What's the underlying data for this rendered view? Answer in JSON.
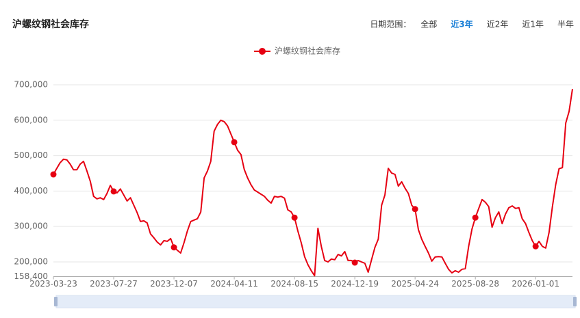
{
  "chart_data": {
    "type": "line",
    "title": "沪螺纹钢社会库存",
    "categories": [
      "2023-03-23",
      null,
      null,
      null,
      null,
      null,
      null,
      null,
      null,
      null,
      null,
      null,
      null,
      null,
      null,
      null,
      null,
      null,
      "2023-07-27",
      null,
      null,
      null,
      null,
      null,
      null,
      null,
      null,
      null,
      null,
      null,
      null,
      null,
      null,
      null,
      null,
      null,
      "2023-12-07",
      null,
      null,
      null,
      null,
      null,
      null,
      null,
      null,
      null,
      null,
      null,
      null,
      null,
      null,
      null,
      null,
      null,
      "2024-04-11",
      null,
      null,
      null,
      null,
      null,
      null,
      null,
      null,
      null,
      null,
      null,
      null,
      null,
      null,
      null,
      null,
      null,
      "2024-08-15",
      null,
      null,
      null,
      null,
      null,
      null,
      null,
      null,
      null,
      null,
      null,
      null,
      null,
      null,
      null,
      null,
      null,
      "2024-12-19",
      null,
      null,
      null,
      null,
      null,
      null,
      null,
      null,
      null,
      null,
      null,
      null,
      null,
      null,
      null,
      null,
      null,
      "2025-04-24",
      null,
      null,
      null,
      null,
      null,
      null,
      null,
      null,
      null,
      null,
      null,
      null,
      null,
      null,
      null,
      null,
      null,
      "2025-08-28",
      null,
      null,
      null,
      null,
      null,
      null,
      null,
      null,
      null,
      null,
      null,
      null,
      null,
      null,
      null,
      null,
      null,
      "2026-01-01",
      null,
      null,
      null,
      null,
      null,
      null,
      null,
      null,
      null,
      null,
      null
    ],
    "series": [
      {
        "name": "沪螺纹钢社会库存",
        "color": "#e60012",
        "values": [
          447000,
          464000,
          480000,
          490000,
          488000,
          476000,
          460000,
          460000,
          476000,
          484000,
          457000,
          428000,
          385000,
          378000,
          381000,
          376000,
          393000,
          416000,
          399000,
          395000,
          406000,
          389000,
          372000,
          381000,
          360000,
          339000,
          314000,
          316000,
          310000,
          279000,
          268000,
          256000,
          248000,
          260000,
          258000,
          266000,
          241000,
          233000,
          225000,
          254000,
          287000,
          314000,
          318000,
          322000,
          341000,
          437000,
          457000,
          484000,
          569000,
          588000,
          600000,
          596000,
          584000,
          561000,
          538000,
          515000,
          503000,
          461000,
          437000,
          418000,
          403000,
          397000,
          391000,
          385000,
          374000,
          366000,
          385000,
          383000,
          385000,
          380000,
          347000,
          341000,
          325000,
          287000,
          254000,
          215000,
          192000,
          175000,
          161000,
          295000,
          244000,
          204000,
          200000,
          208000,
          206000,
          221000,
          217000,
          229000,
          204000,
          204000,
          198000,
          204000,
          200000,
          196000,
          171000,
          206000,
          241000,
          264000,
          360000,
          389000,
          464000,
          451000,
          447000,
          414000,
          426000,
          408000,
          393000,
          360000,
          349000,
          291000,
          264000,
          244000,
          225000,
          202000,
          214000,
          215000,
          214000,
          196000,
          179000,
          169000,
          175000,
          171000,
          179000,
          181000,
          244000,
          293000,
          325000,
          351000,
          376000,
          368000,
          356000,
          298000,
          325000,
          341000,
          308000,
          335000,
          353000,
          358000,
          351000,
          353000,
          322000,
          308000,
          283000,
          260000,
          244000,
          258000,
          244000,
          239000,
          283000,
          356000,
          418000,
          463000,
          466000,
          592000,
          625000,
          688000
        ]
      }
    ],
    "ylim": [
      158400,
      700000
    ],
    "yticks": [
      {
        "value": 158400,
        "label": "158,400"
      },
      {
        "value": 200000,
        "label": "200,000"
      },
      {
        "value": 300000,
        "label": "300,000"
      },
      {
        "value": 400000,
        "label": "400,000"
      },
      {
        "value": 500000,
        "label": "500,000"
      },
      {
        "value": 600000,
        "label": "600,000"
      },
      {
        "value": 700000,
        "label": "700,000"
      }
    ],
    "grid": true,
    "legend": "top"
  },
  "range_label": "日期范围：",
  "range_options": [
    "全部",
    "近3年",
    "近2年",
    "近1年",
    "半年"
  ],
  "active_range": "近3年"
}
